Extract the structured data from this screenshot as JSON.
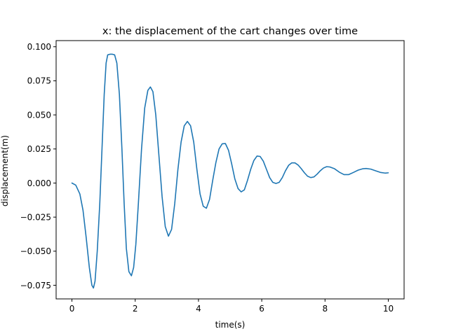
{
  "chart_data": {
    "type": "line",
    "title": "x: the displacement of the cart changes over time",
    "xlabel": "time(s)",
    "ylabel": "displacement(m)",
    "xlim": [
      -0.5,
      10.5
    ],
    "ylim": [
      -0.085,
      0.1045
    ],
    "xticks": [
      0,
      2,
      4,
      6,
      8,
      10
    ],
    "xtick_labels": [
      "0",
      "2",
      "4",
      "6",
      "8",
      "10"
    ],
    "yticks": [
      -0.075,
      -0.05,
      -0.025,
      0.0,
      0.025,
      0.05,
      0.075,
      0.1
    ],
    "ytick_labels": [
      "−0.075",
      "−0.050",
      "−0.025",
      "0.000",
      "0.025",
      "0.050",
      "0.075",
      "0.100"
    ],
    "grid": false,
    "series": [
      {
        "color": "#1f77b4",
        "points": [
          [
            0.0,
            0.0
          ],
          [
            0.12,
            -0.0015
          ],
          [
            0.25,
            -0.008
          ],
          [
            0.35,
            -0.02
          ],
          [
            0.45,
            -0.04
          ],
          [
            0.55,
            -0.062
          ],
          [
            0.63,
            -0.075
          ],
          [
            0.68,
            -0.077
          ],
          [
            0.73,
            -0.072
          ],
          [
            0.8,
            -0.05
          ],
          [
            0.88,
            -0.015
          ],
          [
            0.95,
            0.025
          ],
          [
            1.02,
            0.065
          ],
          [
            1.08,
            0.088
          ],
          [
            1.13,
            0.094
          ],
          [
            1.2,
            0.0945
          ],
          [
            1.28,
            0.0945
          ],
          [
            1.35,
            0.094
          ],
          [
            1.42,
            0.088
          ],
          [
            1.5,
            0.065
          ],
          [
            1.58,
            0.025
          ],
          [
            1.65,
            -0.015
          ],
          [
            1.72,
            -0.048
          ],
          [
            1.8,
            -0.065
          ],
          [
            1.88,
            -0.068
          ],
          [
            1.95,
            -0.062
          ],
          [
            2.02,
            -0.045
          ],
          [
            2.1,
            -0.015
          ],
          [
            2.2,
            0.025
          ],
          [
            2.3,
            0.055
          ],
          [
            2.4,
            0.068
          ],
          [
            2.48,
            0.0705
          ],
          [
            2.56,
            0.067
          ],
          [
            2.65,
            0.05
          ],
          [
            2.75,
            0.02
          ],
          [
            2.85,
            -0.01
          ],
          [
            2.95,
            -0.032
          ],
          [
            3.05,
            -0.039
          ],
          [
            3.15,
            -0.034
          ],
          [
            3.25,
            -0.015
          ],
          [
            3.35,
            0.01
          ],
          [
            3.45,
            0.03
          ],
          [
            3.55,
            0.042
          ],
          [
            3.65,
            0.0452
          ],
          [
            3.75,
            0.042
          ],
          [
            3.85,
            0.03
          ],
          [
            3.95,
            0.01
          ],
          [
            4.05,
            -0.008
          ],
          [
            4.15,
            -0.017
          ],
          [
            4.25,
            -0.0185
          ],
          [
            4.35,
            -0.012
          ],
          [
            4.45,
            0.002
          ],
          [
            4.55,
            0.015
          ],
          [
            4.65,
            0.025
          ],
          [
            4.75,
            0.0288
          ],
          [
            4.85,
            0.029
          ],
          [
            4.95,
            0.024
          ],
          [
            5.05,
            0.014
          ],
          [
            5.15,
            0.003
          ],
          [
            5.25,
            -0.004
          ],
          [
            5.35,
            -0.0065
          ],
          [
            5.45,
            -0.005
          ],
          [
            5.55,
            0.002
          ],
          [
            5.65,
            0.01
          ],
          [
            5.75,
            0.0165
          ],
          [
            5.85,
            0.0198
          ],
          [
            5.95,
            0.0195
          ],
          [
            6.05,
            0.016
          ],
          [
            6.15,
            0.01
          ],
          [
            6.25,
            0.004
          ],
          [
            6.35,
            0.0005
          ],
          [
            6.45,
            -0.0003
          ],
          [
            6.55,
            0.0005
          ],
          [
            6.65,
            0.004
          ],
          [
            6.75,
            0.009
          ],
          [
            6.85,
            0.013
          ],
          [
            6.95,
            0.0148
          ],
          [
            7.05,
            0.0148
          ],
          [
            7.15,
            0.0132
          ],
          [
            7.25,
            0.0105
          ],
          [
            7.35,
            0.0075
          ],
          [
            7.45,
            0.005
          ],
          [
            7.55,
            0.004
          ],
          [
            7.65,
            0.0045
          ],
          [
            7.75,
            0.0065
          ],
          [
            7.85,
            0.009
          ],
          [
            7.95,
            0.011
          ],
          [
            8.05,
            0.012
          ],
          [
            8.15,
            0.0118
          ],
          [
            8.3,
            0.0105
          ],
          [
            8.45,
            0.008
          ],
          [
            8.6,
            0.0062
          ],
          [
            8.75,
            0.0062
          ],
          [
            8.9,
            0.0078
          ],
          [
            9.05,
            0.0095
          ],
          [
            9.2,
            0.0105
          ],
          [
            9.3,
            0.0107
          ],
          [
            9.45,
            0.0102
          ],
          [
            9.6,
            0.009
          ],
          [
            9.75,
            0.0078
          ],
          [
            9.9,
            0.0073
          ],
          [
            10.0,
            0.0075
          ]
        ]
      }
    ]
  }
}
